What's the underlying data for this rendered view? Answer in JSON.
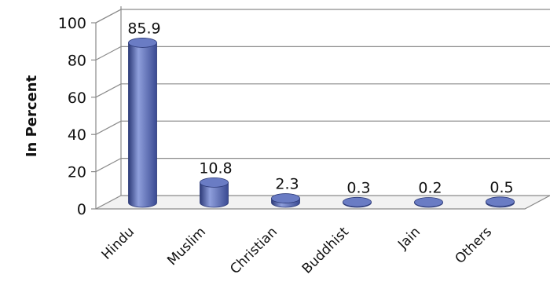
{
  "chart_data": {
    "type": "bar",
    "style": "3d-cylinder",
    "title": "",
    "xlabel": "",
    "ylabel": "In Percent",
    "ylim": [
      0,
      100
    ],
    "yticks": [
      0,
      20,
      40,
      60,
      80,
      100
    ],
    "grid": true,
    "legend": "none",
    "categories": [
      "Hindu",
      "Muslim",
      "Christian",
      "Buddhist",
      "Jain",
      "Others"
    ],
    "values": [
      85.9,
      10.8,
      2.3,
      0.3,
      0.2,
      0.5
    ],
    "value_labels": [
      "85.9",
      "10.8",
      "2.3",
      "0.3",
      "0.2",
      "0.5"
    ],
    "colors": {
      "bar": "#4f62ad",
      "bar_dark": "#2c3a78",
      "bar_light": "#8f9fdc",
      "bar_top": "#6a7cc4",
      "grid": "#8a8a8a"
    }
  }
}
